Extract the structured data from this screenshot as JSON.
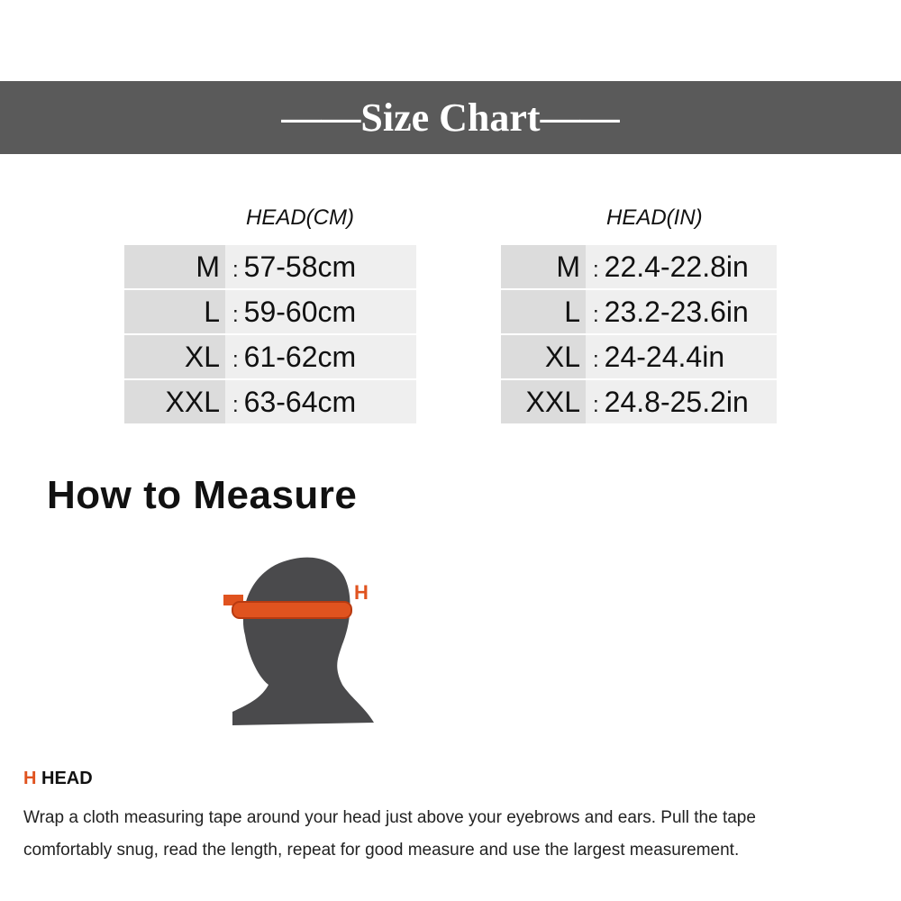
{
  "banner": {
    "title": "——Size Chart——"
  },
  "cm_table": {
    "header": "HEAD(CM)",
    "rows": [
      {
        "size": "M",
        "value": "57-58cm"
      },
      {
        "size": "L",
        "value": "59-60cm"
      },
      {
        "size": "XL",
        "value": "61-62cm"
      },
      {
        "size": "XXL",
        "value": "63-64cm"
      }
    ]
  },
  "in_table": {
    "header": "HEAD(IN)",
    "rows": [
      {
        "size": "M",
        "value": "22.4-22.8in"
      },
      {
        "size": "L",
        "value": "23.2-23.6in"
      },
      {
        "size": "XL",
        "value": "24-24.4in"
      },
      {
        "size": "XXL",
        "value": "24.8-25.2in"
      }
    ]
  },
  "separator": ":",
  "how_to": {
    "title": "How to Measure",
    "diagram_label": "H",
    "head_letter": "H",
    "head_label": "HEAD",
    "lines": [
      "Wrap a cloth measuring tape around your head just above your eyebrows and ears. Pull the tape",
      "comfortably snug, read the length, repeat for good measure and use the largest measurement."
    ]
  },
  "colors": {
    "banner": "#5a5a5a",
    "accent": "#e0531f",
    "head": "#4a4a4c"
  }
}
